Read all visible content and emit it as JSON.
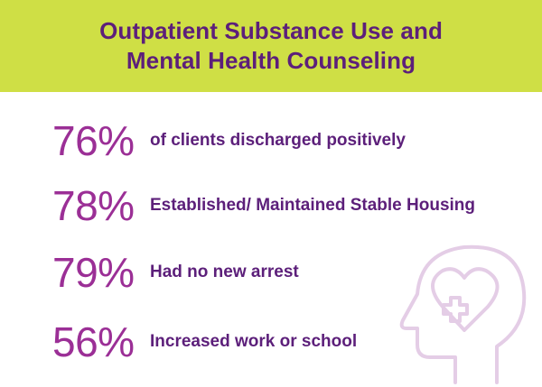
{
  "banner": {
    "title_line1": "Outpatient Substance Use and",
    "title_line2": "Mental Health Counseling",
    "background_color": "#cfdf45",
    "text_color": "#5c1f7a"
  },
  "stats": [
    {
      "value": "76%",
      "label": "of clients discharged positively"
    },
    {
      "value": "78%",
      "label": "Established/ Maintained Stable Housing"
    },
    {
      "value": "79%",
      "label": "Had no new arrest"
    },
    {
      "value": "56%",
      "label": "Increased work or school"
    }
  ],
  "colors": {
    "value_color": "#9b2f96",
    "label_color": "#5c1f7a",
    "icon_color": "#e4cde6"
  },
  "icon": "head-heart-medical-cross-icon"
}
